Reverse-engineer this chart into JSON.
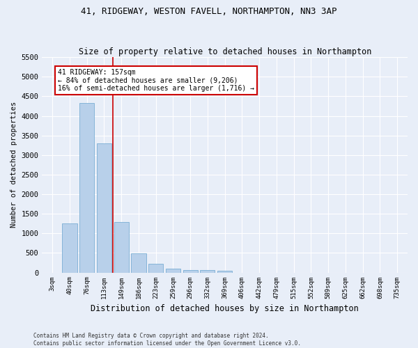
{
  "title": "41, RIDGEWAY, WESTON FAVELL, NORTHAMPTON, NN3 3AP",
  "subtitle": "Size of property relative to detached houses in Northampton",
  "xlabel": "Distribution of detached houses by size in Northampton",
  "ylabel": "Number of detached properties",
  "bar_color": "#b8d0ea",
  "bar_edge_color": "#7aadd4",
  "background_color": "#e8eef8",
  "grid_color": "#ffffff",
  "categories": [
    "3sqm",
    "40sqm",
    "76sqm",
    "113sqm",
    "149sqm",
    "186sqm",
    "223sqm",
    "259sqm",
    "296sqm",
    "332sqm",
    "369sqm",
    "406sqm",
    "442sqm",
    "479sqm",
    "515sqm",
    "552sqm",
    "589sqm",
    "625sqm",
    "662sqm",
    "698sqm",
    "735sqm"
  ],
  "values": [
    0,
    1260,
    4330,
    3300,
    1290,
    490,
    215,
    90,
    65,
    55,
    50,
    0,
    0,
    0,
    0,
    0,
    0,
    0,
    0,
    0,
    0
  ],
  "ylim": [
    0,
    5500
  ],
  "yticks": [
    0,
    500,
    1000,
    1500,
    2000,
    2500,
    3000,
    3500,
    4000,
    4500,
    5000,
    5500
  ],
  "vline_x": 3.5,
  "vline_color": "#cc0000",
  "ann_title": "41 RIDGEWAY: 157sqm",
  "ann_line2": "← 84% of detached houses are smaller (9,206)",
  "ann_line3": "16% of semi-detached houses are larger (1,716) →",
  "annotation_box_color": "#ffffff",
  "annotation_box_edge": "#cc0000",
  "footer_line1": "Contains HM Land Registry data © Crown copyright and database right 2024.",
  "footer_line2": "Contains public sector information licensed under the Open Government Licence v3.0.",
  "fig_width": 6.0,
  "fig_height": 5.0,
  "dpi": 100
}
